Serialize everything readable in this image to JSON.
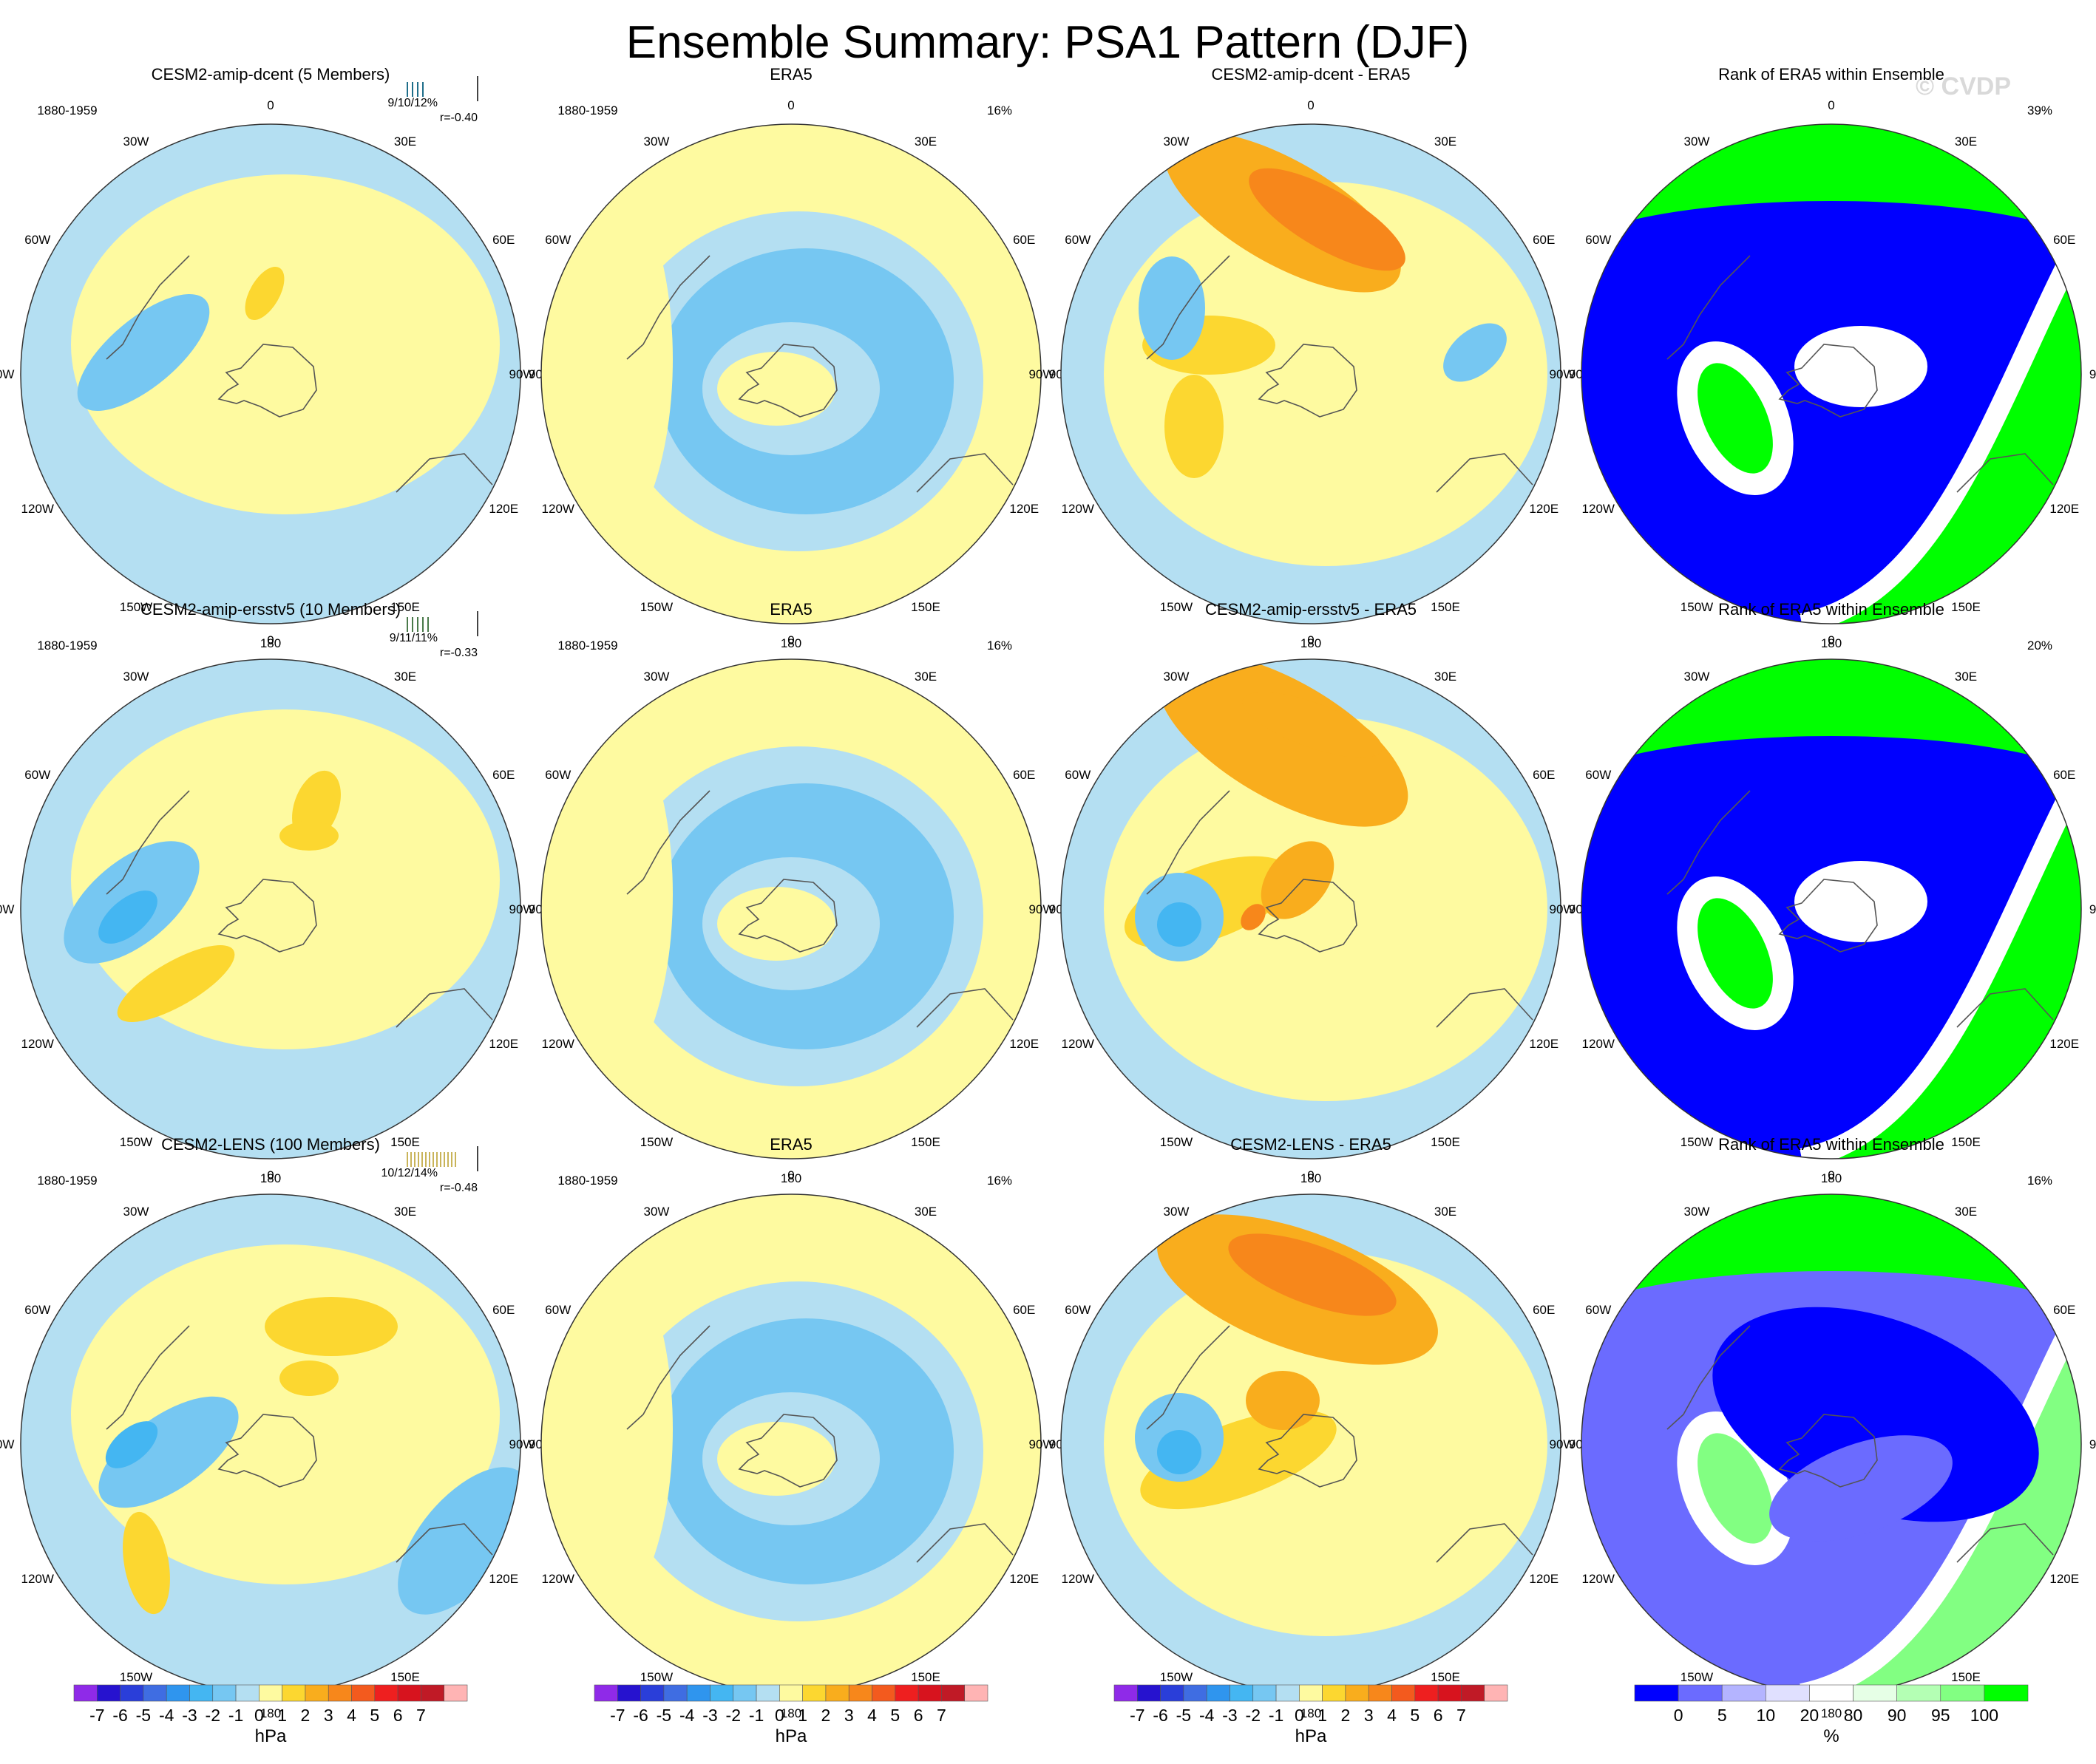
{
  "figure": {
    "title": "Ensemble Summary: PSA1 Pattern (DJF)",
    "watermark": "© CVDP"
  },
  "lon_labels": [
    "0",
    "30E",
    "60E",
    "90E",
    "120E",
    "150E",
    "180",
    "150W",
    "120W",
    "90W",
    "60W",
    "30W"
  ],
  "colors": {
    "anomaly_levels": [
      "#8f2ae8",
      "#2612cf",
      "#2a3ed9",
      "#3f6de2",
      "#2f95ee",
      "#44b6f2",
      "#76c7f2",
      "#b4dff2",
      "#fefaa0",
      "#fcd730",
      "#f9ad1d",
      "#f7871b",
      "#f35a1e",
      "#ee1f1f",
      "#d7131e",
      "#c01a26",
      "#ffb4b4"
    ],
    "rank_levels": [
      "#0000ff",
      "#6b6bff",
      "#b4b4ff",
      "#e0e0ff",
      "#ffffff",
      "#e6ffe6",
      "#b4ffb4",
      "#82ff82",
      "#00ff00"
    ],
    "row_title_colors": [
      "#1f6e8a",
      "#4a7a4a",
      "#c9b45a"
    ]
  },
  "rows": [
    {
      "ensemble": {
        "title": "CESM2-amip-dcent (5 Members)",
        "period": "1880-1959",
        "stats": "9/10/12%",
        "corr": "r=-0.40"
      },
      "obs": {
        "title": "ERA5",
        "period": "1880-1959",
        "pct": "16%"
      },
      "diff": {
        "title": "CESM2-amip-dcent - ERA5"
      },
      "rank": {
        "title": "Rank of ERA5 within Ensemble",
        "pct": "39%"
      }
    },
    {
      "ensemble": {
        "title": "CESM2-amip-ersstv5 (10 Members)",
        "period": "1880-1959",
        "stats": "9/11/11%",
        "corr": "r=-0.33"
      },
      "obs": {
        "title": "ERA5",
        "period": "1880-1959",
        "pct": "16%"
      },
      "diff": {
        "title": "CESM2-amip-ersstv5 - ERA5"
      },
      "rank": {
        "title": "Rank of ERA5 within Ensemble",
        "pct": "20%"
      }
    },
    {
      "ensemble": {
        "title": "CESM2-LENS (100 Members)",
        "period": "1880-1959",
        "stats": "10/12/14%",
        "corr": "r=-0.48"
      },
      "obs": {
        "title": "ERA5",
        "period": "1880-1959",
        "pct": "16%"
      },
      "diff": {
        "title": "CESM2-LENS - ERA5"
      },
      "rank": {
        "title": "Rank of ERA5 within Ensemble",
        "pct": "16%"
      }
    }
  ],
  "colorbars": {
    "anomaly": {
      "ticks": [
        "-7",
        "-6",
        "-5",
        "-4",
        "-3",
        "-2",
        "-1",
        "0",
        "1",
        "2",
        "3",
        "4",
        "5",
        "6",
        "7"
      ],
      "unit": "hPa"
    },
    "rank": {
      "ticks": [
        "0",
        "5",
        "10",
        "20",
        "80",
        "90",
        "95",
        "100"
      ],
      "unit": "%"
    }
  }
}
